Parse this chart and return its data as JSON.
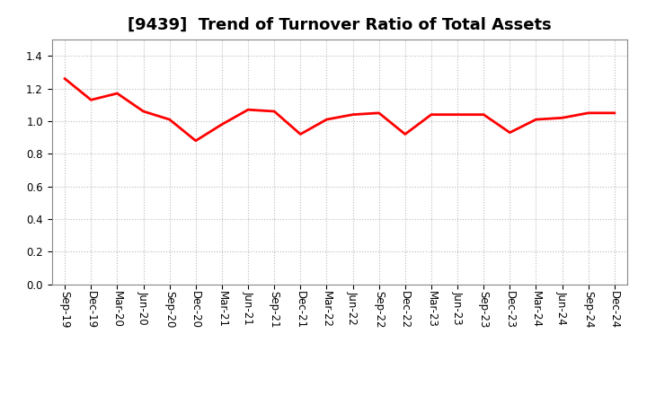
{
  "title": "[9439]  Trend of Turnover Ratio of Total Assets",
  "x_labels": [
    "Sep-19",
    "Dec-19",
    "Mar-20",
    "Jun-20",
    "Sep-20",
    "Dec-20",
    "Mar-21",
    "Jun-21",
    "Sep-21",
    "Dec-21",
    "Mar-22",
    "Jun-22",
    "Sep-22",
    "Dec-22",
    "Mar-23",
    "Jun-23",
    "Sep-23",
    "Dec-23",
    "Mar-24",
    "Jun-24",
    "Sep-24",
    "Dec-24"
  ],
  "y_values": [
    1.26,
    1.13,
    1.17,
    1.06,
    1.01,
    0.88,
    0.98,
    1.07,
    1.06,
    0.92,
    1.01,
    1.04,
    1.05,
    0.92,
    1.04,
    1.04,
    1.04,
    0.93,
    1.01,
    1.02,
    1.05,
    1.05
  ],
  "line_color": "#ff0000",
  "line_width": 2.0,
  "ylim": [
    0.0,
    1.5
  ],
  "yticks": [
    0.0,
    0.2,
    0.4,
    0.6,
    0.8,
    1.0,
    1.2,
    1.4
  ],
  "grid_color": "#bbbbbb",
  "background_color": "#ffffff",
  "title_fontsize": 13,
  "tick_fontsize": 8.5
}
